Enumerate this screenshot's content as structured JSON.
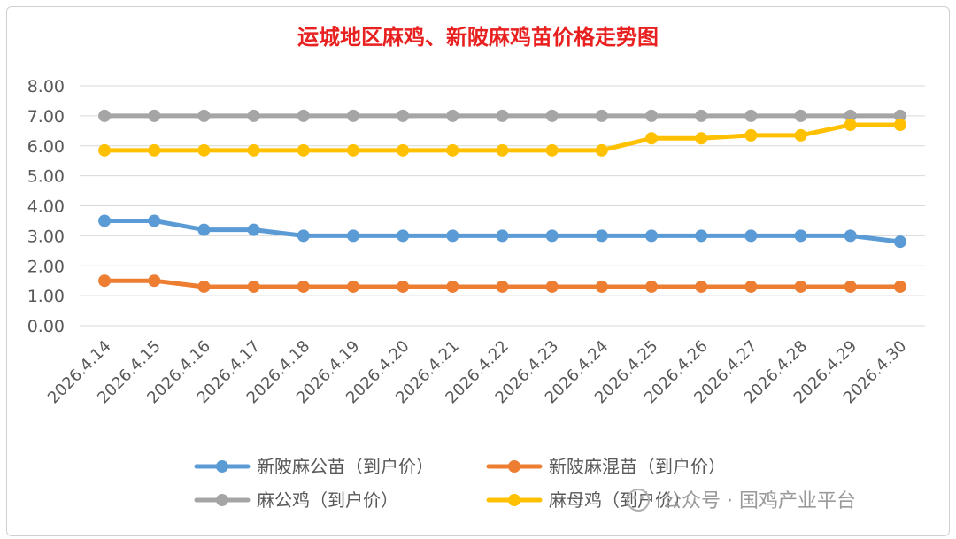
{
  "chart_data": {
    "type": "line",
    "title": "运城地区麻鸡、新陂麻鸡苗价格走势图",
    "xlabel": "",
    "ylabel": "",
    "ylim": [
      0,
      8
    ],
    "ytick_labels": [
      "0.00",
      "1.00",
      "2.00",
      "3.00",
      "4.00",
      "5.00",
      "6.00",
      "7.00",
      "8.00"
    ],
    "grid": true,
    "legend_position": "bottom",
    "categories": [
      "2026.4.14",
      "2026.4.15",
      "2026.4.16",
      "2026.4.17",
      "2026.4.18",
      "2026.4.19",
      "2026.4.20",
      "2026.4.21",
      "2026.4.22",
      "2026.4.23",
      "2026.4.24",
      "2026.4.25",
      "2026.4.26",
      "2026.4.27",
      "2026.4.28",
      "2026.4.29",
      "2026.4.30"
    ],
    "series": [
      {
        "name": "新陂麻公苗（到户价）",
        "color": "#5b9bd5",
        "values": [
          3.5,
          3.5,
          3.2,
          3.2,
          3.0,
          3.0,
          3.0,
          3.0,
          3.0,
          3.0,
          3.0,
          3.0,
          3.0,
          3.0,
          3.0,
          3.0,
          2.8
        ]
      },
      {
        "name": "新陂麻混苗（到户价）",
        "color": "#ed7d31",
        "values": [
          1.5,
          1.5,
          1.3,
          1.3,
          1.3,
          1.3,
          1.3,
          1.3,
          1.3,
          1.3,
          1.3,
          1.3,
          1.3,
          1.3,
          1.3,
          1.3,
          1.3
        ]
      },
      {
        "name": "麻公鸡（到户价）",
        "color": "#a5a5a5",
        "values": [
          7.0,
          7.0,
          7.0,
          7.0,
          7.0,
          7.0,
          7.0,
          7.0,
          7.0,
          7.0,
          7.0,
          7.0,
          7.0,
          7.0,
          7.0,
          7.0,
          7.0
        ]
      },
      {
        "name": "麻母鸡（到户价）",
        "color": "#ffc000",
        "values": [
          5.85,
          5.85,
          5.85,
          5.85,
          5.85,
          5.85,
          5.85,
          5.85,
          5.85,
          5.85,
          5.85,
          6.25,
          6.25,
          6.35,
          6.35,
          6.7,
          6.7
        ]
      }
    ]
  },
  "watermark": {
    "text": "公众号 · 国鸡产业平台",
    "icon": "wechat-icon"
  }
}
